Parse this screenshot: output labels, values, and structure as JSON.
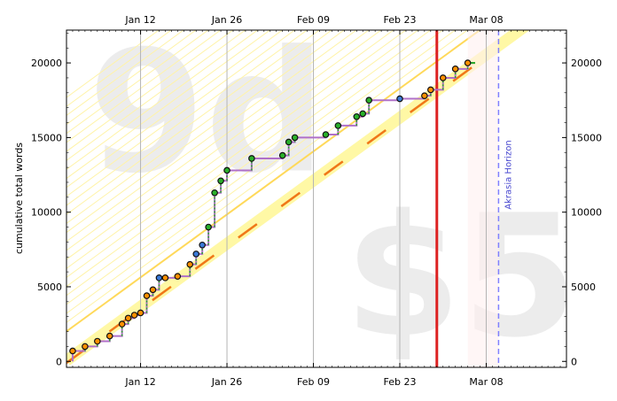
{
  "chart_data": {
    "type": "line",
    "ylabel": "cumulative total words",
    "xlabel": "",
    "title": "",
    "x_ticks": [
      {
        "label": "Jan 12",
        "day": 11
      },
      {
        "label": "Jan 26",
        "day": 25
      },
      {
        "label": "Feb 09",
        "day": 39
      },
      {
        "label": "Feb 23",
        "day": 53
      },
      {
        "label": "Mar 08",
        "day": 67
      }
    ],
    "xlim": [
      "Dec 31",
      "Mar 22"
    ],
    "ylim": [
      -400,
      22200
    ],
    "y_ticks": [
      0,
      5000,
      10000,
      15000,
      20000
    ],
    "background_text": {
      "safety_buffer": "9d",
      "pledge": "$5"
    },
    "today": "Mar 01",
    "akrasia_horizon": {
      "label": "Akrasia Horizon",
      "date": "Mar 11"
    },
    "grid": true,
    "bright_red_line": {
      "start": [
        "Dec 31",
        -100
      ],
      "end": [
        "Mar 08",
        20100
      ]
    },
    "series": [
      {
        "values": [
          [
            "Jan 01",
            700
          ],
          [
            "Jan 03",
            1000
          ],
          [
            "Jan 05",
            1350
          ],
          [
            "Jan 07",
            1700
          ],
          [
            "Jan 09",
            2500
          ],
          [
            "Jan 10",
            2900
          ],
          [
            "Jan 11",
            3100
          ],
          [
            "Jan 12",
            3250
          ],
          [
            "Jan 13",
            4400
          ],
          [
            "Jan 14",
            4800
          ],
          [
            "Jan 15",
            5600
          ],
          [
            "Jan 16",
            5600
          ],
          [
            "Jan 18",
            5700
          ],
          [
            "Jan 20",
            6500
          ],
          [
            "Jan 21",
            7200
          ],
          [
            "Jan 22",
            7800
          ],
          [
            "Jan 23",
            9000
          ],
          [
            "Jan 24",
            11300
          ],
          [
            "Jan 25",
            12100
          ],
          [
            "Jan 26",
            12800
          ],
          [
            "Jan 30",
            13600
          ],
          [
            "Feb 04",
            13800
          ],
          [
            "Feb 05",
            14700
          ],
          [
            "Feb 06",
            15000
          ],
          [
            "Feb 11",
            15200
          ],
          [
            "Feb 13",
            15800
          ],
          [
            "Feb 16",
            16400
          ],
          [
            "Feb 17",
            16600
          ],
          [
            "Feb 18",
            17500
          ],
          [
            "Feb 23",
            17600
          ],
          [
            "Feb 27",
            17800
          ],
          [
            "Feb 28",
            18200
          ],
          [
            "Mar 02",
            19000
          ],
          [
            "Mar 04",
            19600
          ],
          [
            "Mar 06",
            20000
          ]
        ]
      }
    ]
  }
}
